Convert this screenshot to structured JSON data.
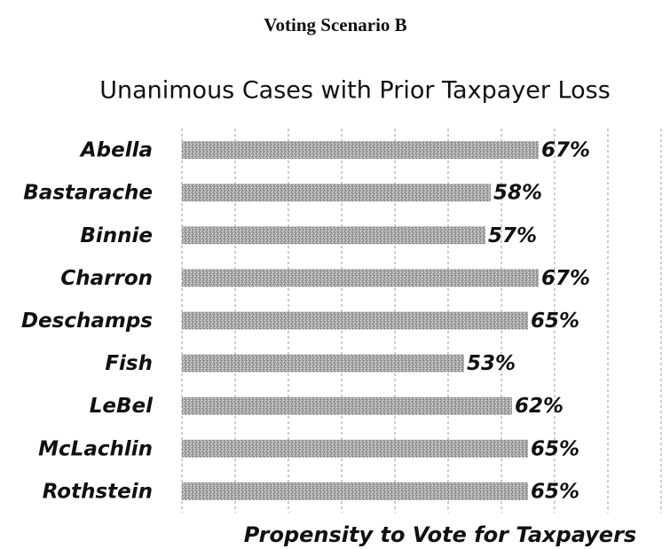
{
  "chart_data": {
    "type": "hbar",
    "heading": "Voting Scenario B",
    "title": "Unanimous Cases with Prior Taxpayer Loss",
    "x_label": "Propensity to Vote for Taxpayers",
    "categories": [
      "Abella",
      "Bastarache",
      "Binnie",
      "Charron",
      "Deschamps",
      "Fish",
      "LeBel",
      "McLachlin",
      "Rothstein"
    ],
    "values": [
      67,
      58,
      57,
      67,
      65,
      53,
      62,
      65,
      65
    ],
    "value_labels": [
      "67%",
      "58%",
      "57%",
      "67%",
      "65%",
      "53%",
      "62%",
      "65%",
      "65%"
    ],
    "color": "#a9a9a9",
    "xlim": [
      0,
      90
    ],
    "xticks": [
      0,
      10,
      20,
      30,
      40,
      50,
      60,
      70,
      80,
      90
    ],
    "grid": true
  }
}
